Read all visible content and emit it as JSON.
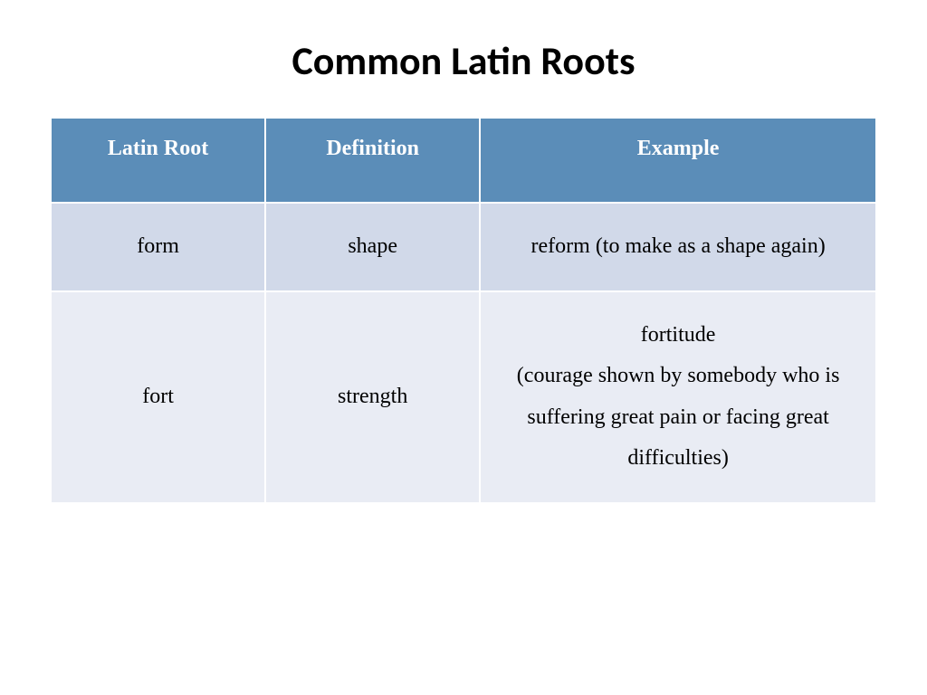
{
  "title": "Common Latin Roots",
  "table": {
    "type": "table",
    "header_bg_color": "#5b8db8",
    "header_text_color": "#ffffff",
    "row_odd_bg_color": "#d1d9e9",
    "row_even_bg_color": "#e9ecf4",
    "border_color": "#ffffff",
    "title_fontsize": 44,
    "header_fontsize": 24,
    "cell_fontsize": 24,
    "columns": [
      {
        "label": "Latin Root",
        "width": "26%"
      },
      {
        "label": "Definition",
        "width": "26%"
      },
      {
        "label": "Example",
        "width": "48%"
      }
    ],
    "rows": [
      {
        "root": "form",
        "definition": "shape",
        "example": "reform (to make as a shape again)"
      },
      {
        "root": "fort",
        "definition": "strength",
        "example": "fortitude\n(courage shown by somebody who is suffering great pain or facing great difficulties)"
      }
    ]
  }
}
